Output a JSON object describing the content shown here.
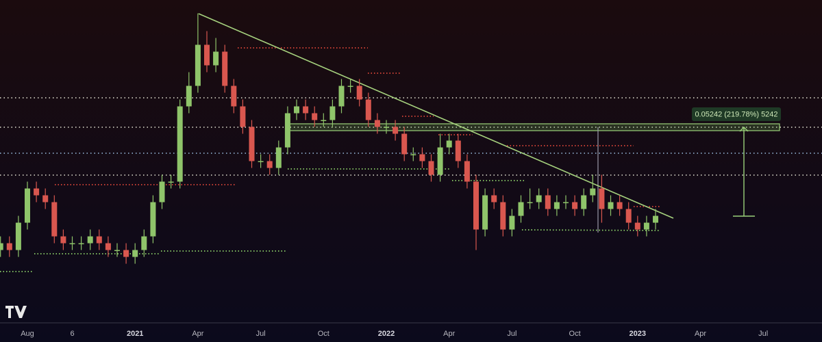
{
  "chart_data": {
    "type": "candlestick",
    "annotation": "0.05242 (219.78%) 5242",
    "categories": [
      null,
      null,
      null,
      "Aug",
      null,
      null,
      null,
      null,
      "6",
      null,
      null,
      null,
      null,
      null,
      null,
      "2021",
      null,
      null,
      null,
      null,
      null,
      null,
      "Apr",
      null,
      null,
      null,
      null,
      null,
      null,
      "Jul",
      null,
      null,
      null,
      null,
      null,
      null,
      "Oct",
      null,
      null,
      null,
      null,
      null,
      null,
      "2022",
      null,
      null,
      null,
      null,
      null,
      null,
      "Apr",
      null,
      null,
      null,
      null,
      null,
      null,
      "Jul",
      null,
      null,
      null,
      null,
      null,
      null,
      "Oct",
      null,
      null,
      null,
      null,
      null,
      null,
      "2023",
      null,
      null,
      null,
      null,
      null,
      null,
      "Apr",
      null,
      null,
      null,
      null,
      null,
      null,
      "Jul",
      null,
      null,
      null,
      null,
      null
    ],
    "open": [
      0.01526,
      0.01668,
      0.01526,
      0.02181,
      0.0341,
      0.03119,
      0.02852,
      0.01824,
      0.01668,
      0.01668,
      0.01668,
      0.01824,
      0.01668,
      0.01526,
      0.01526,
      0.01395,
      0.01526,
      0.01824,
      0.02852,
      0.03729,
      0.03729,
      0.09967,
      0.1303,
      0.2228,
      0.1704,
      0.2037,
      0.1303,
      0.09967,
      0.07623,
      0.04876,
      0.04876,
      0.04459,
      0.0583,
      0.09115,
      0.09967,
      0.09115,
      0.08336,
      0.08336,
      0.09967,
      0.1303,
      0.1303,
      0.109,
      0.08336,
      0.07623,
      0.07623,
      0.06971,
      0.05332,
      0.05332,
      0.04876,
      0.04078,
      0.0583,
      0.06375,
      0.04876,
      0.03729,
      0.01995,
      0.03119,
      0.02852,
      0.01995,
      0.02385,
      0.02852,
      0.02852,
      0.03119,
      0.02608,
      0.02852,
      0.02852,
      0.02608,
      0.03119,
      0.0341,
      0.02608,
      0.02852,
      0.02608,
      0.02181,
      0.01995,
      0.02181,
      null,
      null,
      null,
      null,
      null,
      null,
      null,
      null,
      null,
      null,
      null,
      null,
      null,
      null,
      null,
      null,
      null
    ],
    "high": [
      0.01824,
      0.01824,
      0.02385,
      0.03729,
      0.03729,
      0.0341,
      0.03119,
      0.01995,
      0.01824,
      0.01824,
      0.01995,
      0.01995,
      0.01824,
      0.01668,
      0.01668,
      0.01668,
      0.01995,
      0.03119,
      0.04078,
      0.04078,
      0.109,
      0.1558,
      0.336,
      0.2664,
      0.2436,
      0.2228,
      0.1425,
      0.109,
      0.08336,
      0.05332,
      0.05332,
      0.06375,
      0.09967,
      0.109,
      0.109,
      0.09967,
      0.09115,
      0.109,
      0.1425,
      0.1425,
      0.1425,
      0.1192,
      0.09115,
      0.08336,
      0.08336,
      0.07623,
      0.0583,
      0.0583,
      0.05332,
      0.06971,
      0.06971,
      0.06971,
      0.05332,
      0.04078,
      0.0341,
      0.0341,
      0.03119,
      0.02608,
      0.03119,
      0.0341,
      0.0341,
      0.0341,
      0.03119,
      0.03119,
      0.03119,
      0.0341,
      0.04078,
      0.04078,
      0.03119,
      0.03119,
      0.02852,
      0.02385,
      0.02385,
      0.02608,
      null,
      null,
      null,
      null,
      null,
      null,
      null,
      null,
      null,
      null,
      null,
      null,
      null,
      null,
      null,
      null,
      null
    ],
    "low": [
      0.01395,
      0.01395,
      0.01395,
      0.01995,
      0.02852,
      0.02608,
      0.01668,
      0.01526,
      0.01526,
      0.01526,
      0.01526,
      0.01526,
      0.01395,
      0.01395,
      0.01276,
      0.01276,
      0.01395,
      0.01668,
      0.02608,
      0.0341,
      0.0341,
      0.09115,
      0.1192,
      0.1558,
      0.1558,
      0.1192,
      0.09115,
      0.06971,
      0.04459,
      0.04459,
      0.04078,
      0.04078,
      0.05332,
      0.08336,
      0.08336,
      0.07623,
      0.07623,
      0.07623,
      0.09115,
      0.1192,
      0.09967,
      0.07623,
      0.06971,
      0.06971,
      0.06375,
      0.04876,
      0.04876,
      0.04459,
      0.03729,
      0.03729,
      0.05332,
      0.04459,
      0.0341,
      0.01526,
      0.01824,
      0.02608,
      0.01824,
      0.01824,
      0.02181,
      0.02608,
      0.02608,
      0.02385,
      0.02385,
      0.02608,
      0.02385,
      0.02385,
      0.02852,
      0.02181,
      0.02385,
      0.02385,
      0.01995,
      0.01824,
      0.01824,
      0.01995,
      null,
      null,
      null,
      null,
      null,
      null,
      null,
      null,
      null,
      null,
      null,
      null,
      null,
      null,
      null,
      null,
      null
    ],
    "close": [
      0.01668,
      0.01526,
      0.02181,
      0.0341,
      0.03119,
      0.02852,
      0.01824,
      0.01668,
      0.01668,
      0.01668,
      0.01824,
      0.01668,
      0.01526,
      0.01526,
      0.01395,
      0.01526,
      0.01824,
      0.02852,
      0.03729,
      0.03729,
      0.09967,
      0.1303,
      0.2228,
      0.1704,
      0.2037,
      0.1303,
      0.09967,
      0.07623,
      0.04876,
      0.04876,
      0.04459,
      0.0583,
      0.09115,
      0.09967,
      0.09115,
      0.08336,
      0.08336,
      0.09967,
      0.1303,
      0.1303,
      0.109,
      0.08336,
      0.07623,
      0.07623,
      0.06971,
      0.05332,
      0.05332,
      0.04876,
      0.04078,
      0.0583,
      0.06375,
      0.04876,
      0.03729,
      0.01995,
      0.03119,
      0.02852,
      0.01995,
      0.02385,
      0.02852,
      0.02852,
      0.03119,
      0.02608,
      0.02852,
      0.02852,
      0.02608,
      0.03119,
      0.0341,
      0.02608,
      0.02852,
      0.02608,
      0.02181,
      0.01995,
      0.02181,
      0.02385,
      null,
      null,
      null,
      null,
      null,
      null,
      null,
      null,
      null,
      null,
      null,
      null,
      null,
      null,
      null,
      null,
      null
    ],
    "ylim": [
      0.006,
      0.4
    ],
    "log_scale": true,
    "up_color": "#8fc46a",
    "down_color": "#d9574f"
  }
}
